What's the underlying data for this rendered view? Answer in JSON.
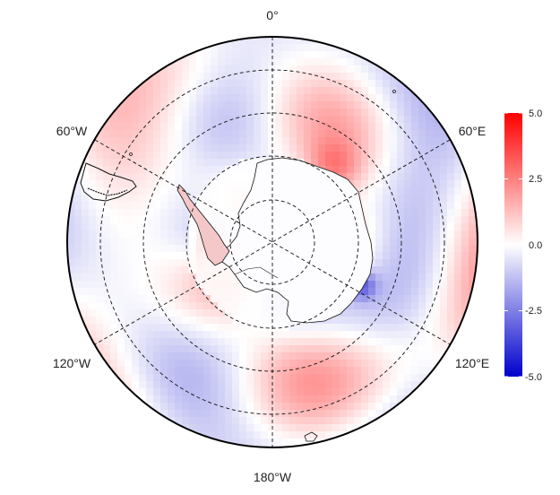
{
  "map": {
    "projection": "south-polar-stereographic",
    "longitude_labels": {
      "top": "0°",
      "upper_left": "60°W",
      "upper_right": "60°E",
      "lower_left": "120°W",
      "lower_right": "120°E",
      "bottom": "180°W"
    },
    "graticule_style": "dashed",
    "anomaly_field": "red-blue diverging shading over the Southern Ocean; positive anomalies near the Antarctic Peninsula and off Dronning Maud Land, negative in the Weddell/Ross sector outer rings"
  },
  "colorbar": {
    "ticks": [
      "5.0",
      "2.5",
      "0.0",
      "-2.5",
      "-5.0"
    ],
    "colors": {
      "max": "#ff0000",
      "mid": "#ffffff",
      "min": "#0000cc"
    },
    "range": [
      -5.0,
      5.0
    ]
  }
}
